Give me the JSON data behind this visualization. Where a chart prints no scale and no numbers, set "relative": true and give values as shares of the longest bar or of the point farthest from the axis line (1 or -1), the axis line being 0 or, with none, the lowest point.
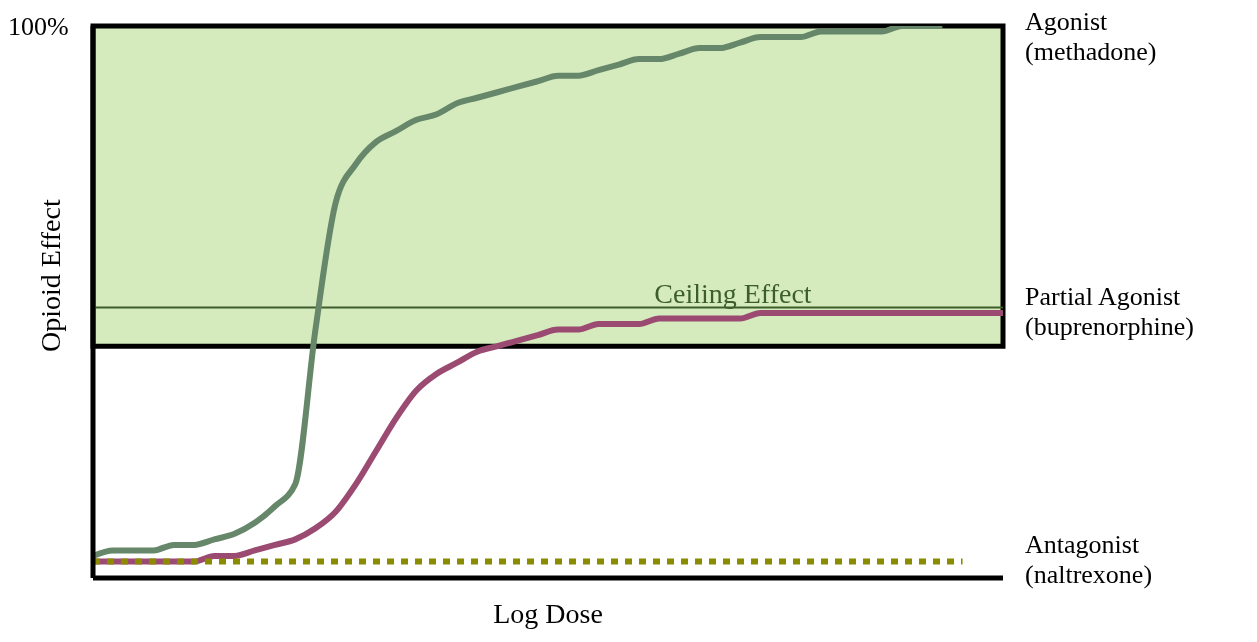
{
  "chart_data": {
    "type": "line",
    "relative": true,
    "xlabel": "Log Dose",
    "ylabel": "Opioid Effect",
    "annotations": [
      "100%"
    ],
    "categories": [
      null,
      null,
      null,
      null,
      null,
      null,
      null,
      null,
      null,
      null,
      null,
      null,
      null,
      null,
      null,
      null,
      null,
      null,
      null,
      null,
      null,
      null,
      null,
      null,
      null,
      null,
      null,
      null,
      null,
      null,
      null,
      null,
      null,
      null,
      null,
      null,
      null,
      null,
      null,
      null,
      null,
      null,
      null,
      null,
      null,
      null
    ],
    "series": [
      {
        "name": "Agonist\n(methadone)",
        "color": "#66876a",
        "line_style": "solid",
        "values": [
          0.04,
          0.05,
          0.05,
          0.05,
          0.06,
          0.06,
          0.07,
          0.08,
          0.1,
          0.13,
          0.17,
          0.45,
          0.68,
          0.75,
          0.79,
          0.81,
          0.83,
          0.84,
          0.86,
          0.87,
          0.88,
          0.89,
          0.9,
          0.91,
          0.91,
          0.92,
          0.93,
          0.94,
          0.94,
          0.95,
          0.96,
          0.96,
          0.97,
          0.98,
          0.98,
          0.98,
          0.99,
          0.99,
          0.99,
          0.99,
          1,
          1,
          1,
          null,
          null,
          null
        ]
      },
      {
        "name": "Partial Agonist\n(buprenorphine)",
        "color": "#9b4a72",
        "line_style": "solid",
        "values": [
          0.03,
          0.03,
          0.03,
          0.03,
          0.03,
          0.03,
          0.04,
          0.04,
          0.05,
          0.06,
          0.07,
          0.09,
          0.12,
          0.17,
          0.23,
          0.29,
          0.34,
          0.37,
          0.39,
          0.41,
          0.42,
          0.43,
          0.44,
          0.45,
          0.45,
          0.46,
          0.46,
          0.46,
          0.47,
          0.47,
          0.47,
          0.47,
          0.47,
          0.48,
          0.48,
          0.48,
          0.48,
          0.48,
          0.48,
          0.48,
          0.48,
          0.48,
          0.48,
          0.48,
          0.48,
          0.48
        ]
      },
      {
        "name": "Antagonist\n(naltrexone)",
        "color": "#8b8b00",
        "line_style": "dotted",
        "values": [
          0.03,
          0.03,
          0.03,
          0.03,
          0.03,
          0.03,
          0.03,
          0.03,
          0.03,
          0.03,
          0.03,
          0.03,
          0.03,
          0.03,
          0.03,
          0.03,
          0.03,
          0.03,
          0.03,
          0.03,
          0.03,
          0.03,
          0.03,
          0.03,
          0.03,
          0.03,
          0.03,
          0.03,
          0.03,
          0.03,
          0.03,
          0.03,
          0.03,
          0.03,
          0.03,
          0.03,
          0.03,
          0.03,
          0.03,
          0.03,
          0.03,
          0.03,
          0.03,
          0.03,
          null,
          null
        ]
      }
    ],
    "ref_lines": [
      {
        "axis": "y",
        "value": 0.49,
        "label": "Ceiling Effect",
        "color": "#3d5e2a"
      }
    ],
    "bands": [
      {
        "axis": "y",
        "from": 0.42,
        "to": 1,
        "color": "#d5ebbd"
      }
    ]
  }
}
